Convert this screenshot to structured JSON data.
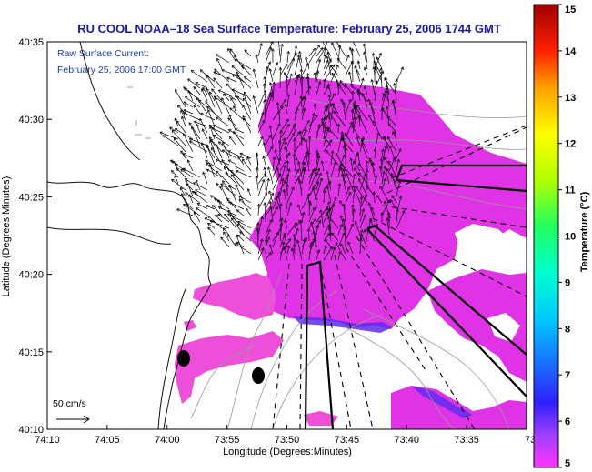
{
  "title": "RU COOL  NOAA–18  Sea Surface Temperature:  February 25, 2006 1744 GMT",
  "inset": {
    "line1": "Raw Surface Current:",
    "line2": "February 25, 2006 17:00 GMT"
  },
  "axes": {
    "xlabel": "Longitude (Degrees:Minutes)",
    "ylabel": "Latitude (Degrees:Minutes)",
    "xticks": [
      "74:10",
      "74:05",
      "74:00",
      "73:55",
      "73:50",
      "73:45",
      "73:40",
      "73:35",
      "73:3"
    ],
    "yticks": [
      "40:35",
      "40:30",
      "40:25",
      "40:20",
      "40:15",
      "40:10"
    ]
  },
  "scale_label": "50 cm/s",
  "colorbar": {
    "label": "Temperature (°C)",
    "ticks": [
      "15",
      "14",
      "13",
      "12",
      "11",
      "10",
      "9",
      "8",
      "7",
      "6",
      "5"
    ]
  },
  "colors": {
    "title_text": "#1a1aa6",
    "inset_text": "#1a3fb0",
    "sst_magenta": "#e033e6",
    "sst_pink": "#ee4fd8",
    "sst_blue": "#5a2cf0",
    "vectors": "#000000",
    "contours": "#9a9a9a"
  }
}
